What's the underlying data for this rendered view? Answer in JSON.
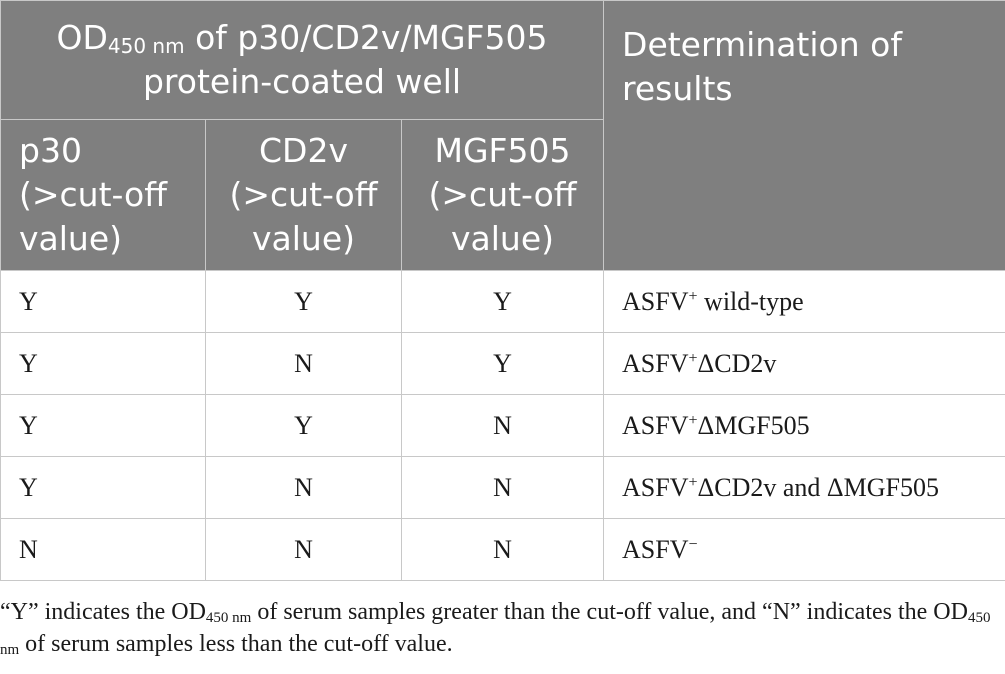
{
  "header": {
    "group_label_pre": "OD",
    "group_label_sub": "450 nm",
    "group_label_post": " of p30/CD2v/MGF505 protein-coated well",
    "determination_label": "Determination of results",
    "columns": [
      "p30 (>cut-off value)",
      "CD2v (>cut-off value)",
      "MGF505 (>cut-off value)"
    ]
  },
  "rows": [
    {
      "p30": "Y",
      "cd2v": "Y",
      "mgf505": "Y",
      "result_base": "ASFV",
      "result_sup": "+",
      "result_rest": " wild-type"
    },
    {
      "p30": "Y",
      "cd2v": "N",
      "mgf505": "Y",
      "result_base": "ASFV",
      "result_sup": "+",
      "result_rest": "ΔCD2v"
    },
    {
      "p30": "Y",
      "cd2v": "Y",
      "mgf505": "N",
      "result_base": "ASFV",
      "result_sup": "+",
      "result_rest": "ΔMGF505"
    },
    {
      "p30": "Y",
      "cd2v": "N",
      "mgf505": "N",
      "result_base": "ASFV",
      "result_sup": "+",
      "result_rest": "ΔCD2v and ΔMGF505"
    },
    {
      "p30": "N",
      "cd2v": "N",
      "mgf505": "N",
      "result_base": "ASFV",
      "result_sup": "−",
      "result_rest": ""
    }
  ],
  "footnote": {
    "part1": "“Y” indicates the OD",
    "sub1": "450 nm",
    "part2": " of serum samples greater than the cut-off value, and “N” indicates the OD",
    "sub2": "450 nm",
    "part3": " of serum samples less than the cut-off value."
  },
  "colors": {
    "header_bg": "#7f7f7f",
    "header_text": "#ffffff",
    "border": "#c8c8c8",
    "body_text": "#1a1a1a"
  }
}
